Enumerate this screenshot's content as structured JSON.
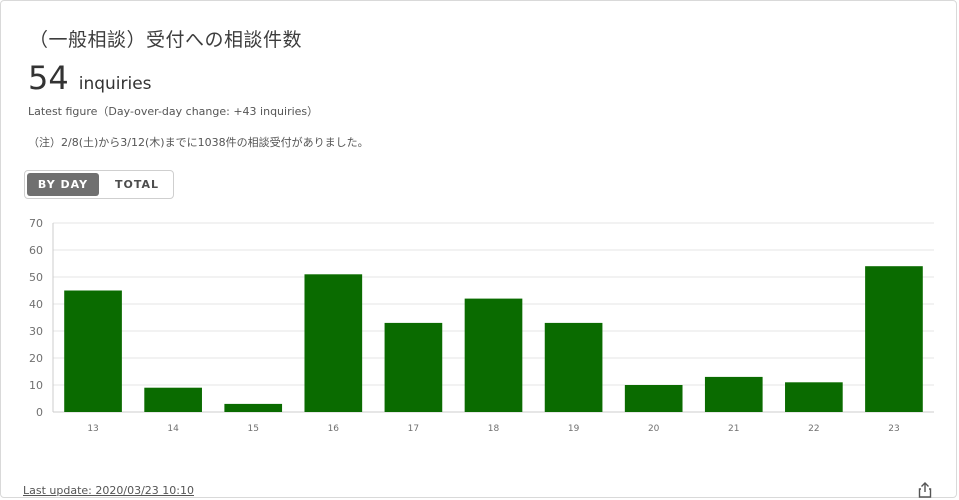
{
  "card": {
    "title": "（一般相談）受付への相談件数",
    "latest_value": "54",
    "latest_unit": "inquiries",
    "latest_note": "Latest figure（Day-over-day change: +43 inquiries）",
    "footnote": "（注）2/8(土)から3/12(木)までに1038件の相談受付がありました。",
    "toggle": {
      "by_day_label": "BY DAY",
      "total_label": "TOTAL",
      "selected": "BY DAY"
    },
    "last_update": "Last update: 2020/03/23 10:10",
    "share_icon": "share-icon"
  },
  "colors": {
    "bar": "#0a6b00",
    "grid": "#e6e6e6",
    "axis": "#cccccc",
    "tick": "#707070"
  },
  "chart_data": {
    "type": "bar",
    "categories": [
      "13",
      "14",
      "15",
      "16",
      "17",
      "18",
      "19",
      "20",
      "21",
      "22",
      "23"
    ],
    "values": [
      45,
      9,
      3,
      51,
      33,
      42,
      33,
      10,
      13,
      11,
      54
    ],
    "ylim": [
      0,
      70
    ],
    "yticks": [
      0,
      10,
      20,
      30,
      40,
      50,
      60,
      70
    ],
    "grid": true,
    "legend": "none"
  }
}
